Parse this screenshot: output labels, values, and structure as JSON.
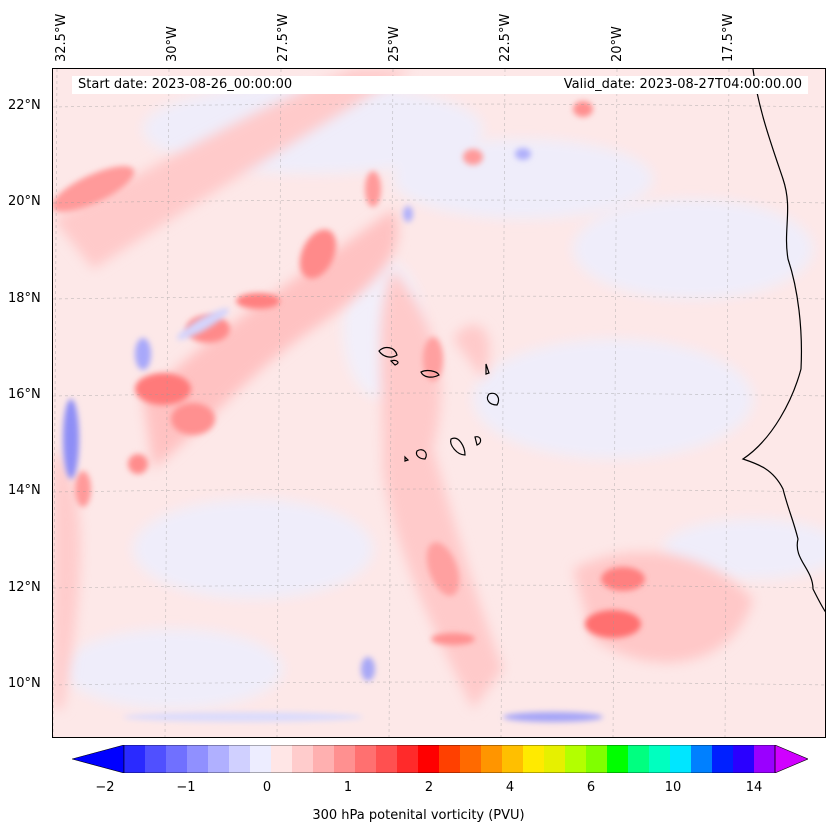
{
  "map": {
    "lon_labels": [
      "32.5°W",
      "30°W",
      "27.5°W",
      "25°W",
      "22.5°W",
      "20°W",
      "17.5°W"
    ],
    "lat_labels": [
      "22°N",
      "20°N",
      "18°N",
      "16°N",
      "14°N",
      "12°N",
      "10°N"
    ],
    "start_date": "Start date: 2023-08-26_00:00:00",
    "valid_date": "Valid_date: 2023-08-27T04:00:00.00",
    "variable": "300 hPa potenital vorticity (PVU)"
  },
  "colorbar": {
    "tick_labels": [
      "−2",
      "−1",
      "0",
      "1",
      "2",
      "4",
      "6",
      "10",
      "14"
    ],
    "colors": [
      "#0000ff",
      "#2a2aff",
      "#5050ff",
      "#7070ff",
      "#9090ff",
      "#b0b0ff",
      "#d0d0ff",
      "#ededff",
      "#ffe6e6",
      "#ffcccc",
      "#ffb0b0",
      "#ff9090",
      "#ff7070",
      "#ff5050",
      "#ff2a2a",
      "#ff0000",
      "#ff4000",
      "#ff6a00",
      "#ff9500",
      "#ffbf00",
      "#ffea00",
      "#e6f000",
      "#b3ff00",
      "#80ff00",
      "#00ff00",
      "#00ff80",
      "#00ffbf",
      "#00e6ff",
      "#0080ff",
      "#0020ff",
      "#2a00ff",
      "#9a00ff",
      "#d000ff"
    ]
  }
}
